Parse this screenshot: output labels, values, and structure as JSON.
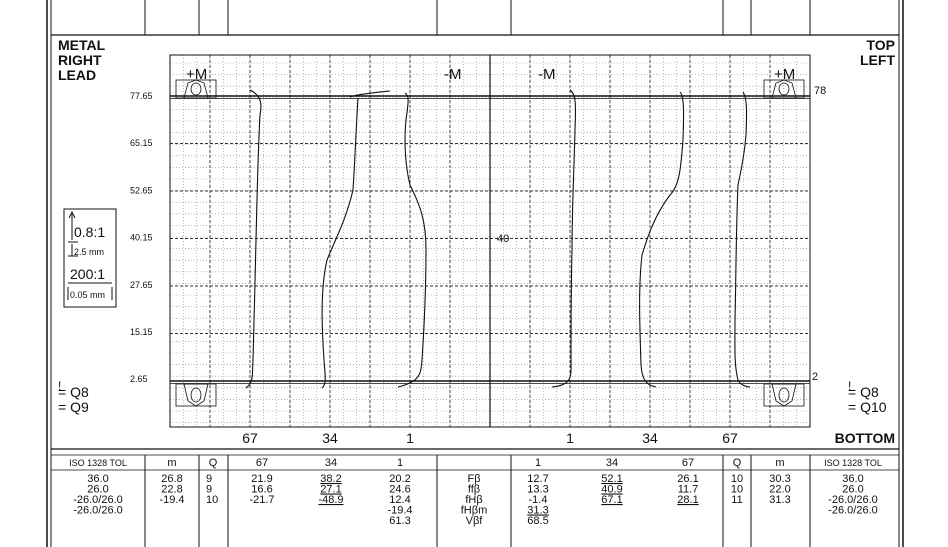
{
  "header": {
    "left_title": [
      "METAL",
      "RIGHT",
      "LEAD"
    ],
    "right_title": [
      "TOP",
      "LEFT"
    ],
    "bottom_right": "BOTTOM"
  },
  "chart_data": {
    "type": "line",
    "title": "",
    "y_ticks": [
      "77.65",
      "65.15",
      "52.65",
      "40.15",
      "27.65",
      "15.15",
      "2.65"
    ],
    "markers": {
      "top": "78",
      "middle": "40",
      "bottom": "2"
    },
    "flank_marks": [
      "+M",
      "-M",
      "-M",
      "+M"
    ],
    "bottom_tooth_labels_left": [
      "67",
      "34",
      "1"
    ],
    "bottom_tooth_labels_right": [
      "1",
      "34",
      "67"
    ],
    "scale": {
      "vertical_ratio": "0.8:1",
      "vertical_unit": "2.5 mm",
      "horizontal_ratio": "200:1",
      "horizontal_unit": "0.05 mm"
    },
    "quality_left": [
      "= Q8",
      "= Q9"
    ],
    "quality_right": [
      "= Q8",
      "= Q10"
    ]
  },
  "table": {
    "headers": [
      "ISO 1328 TOL",
      "m",
      "Q",
      "67",
      "34",
      "1",
      "",
      "1",
      "34",
      "67",
      "Q",
      "m",
      "ISO 1328 TOL"
    ],
    "tol_left": [
      "36.0",
      "26.0",
      "-26.0/26.0",
      "-26.0/26.0"
    ],
    "m_left": [
      "26.8",
      "22.8",
      "-19.4"
    ],
    "q_left": [
      "9",
      "9",
      "10"
    ],
    "c67_left": [
      "21.9",
      "16.6",
      "-21.7"
    ],
    "c34_left": [
      "38.2",
      "27.1",
      "-48.9"
    ],
    "c1_left": [
      "20.2",
      "24.6",
      "12.4",
      "-19.4",
      "61.3"
    ],
    "params": [
      "Fβ",
      "ffβ",
      "fHβ",
      "fHβm",
      "Vβf"
    ],
    "c1_right": [
      "12.7",
      "13.3",
      "-1.4",
      "31.3",
      "68.5"
    ],
    "c34_right": [
      "52.1",
      "40.9",
      "67.1"
    ],
    "c67_right": [
      "26.1",
      "11.7",
      "28.1"
    ],
    "q_right": [
      "10",
      "10",
      "11"
    ],
    "m_right": [
      "30.3",
      "22.0",
      "31.3"
    ],
    "tol_right": [
      "36.0",
      "26.0",
      "-26.0/26.0",
      "-26.0/26.0"
    ]
  }
}
